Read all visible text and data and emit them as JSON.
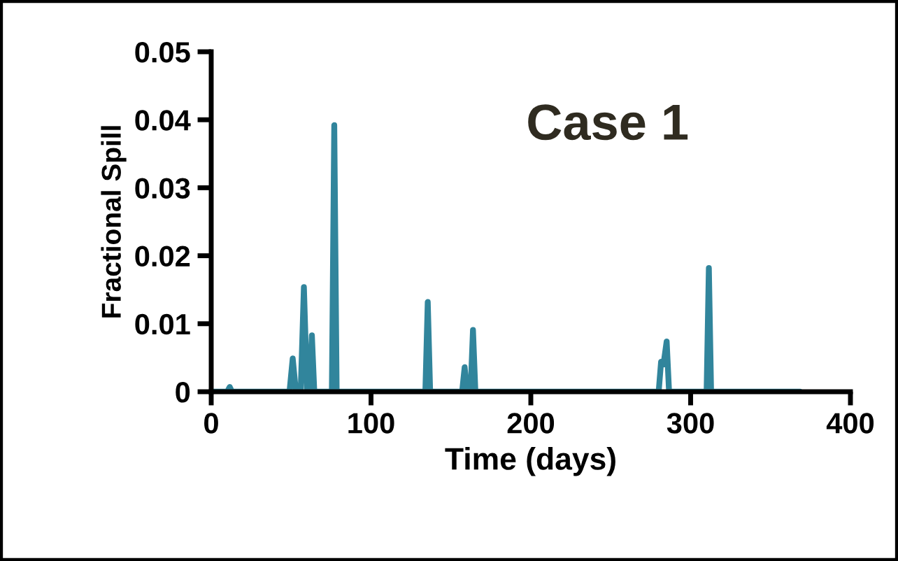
{
  "chart_data": {
    "type": "line",
    "xlabel": "Time (days)",
    "ylabel": "Fractional Spill",
    "annotations": [
      "Case 1"
    ],
    "series": [
      {
        "color": "#31859c",
        "x": [
          0,
          10,
          11.6,
          13,
          49,
          51,
          53,
          56,
          58,
          60,
          61.5,
          63,
          64.5,
          75.5,
          77,
          78.5,
          134,
          135.5,
          137,
          157,
          158.6,
          160,
          162.3,
          163.8,
          165.3,
          280,
          281.5,
          283,
          285,
          286.5,
          310,
          311.4,
          312.8,
          368.5
        ],
        "values": [
          0,
          0,
          0.0007,
          0,
          0,
          0.0049,
          0,
          0,
          0.0154,
          0,
          0,
          0.0083,
          0,
          0,
          0.0392,
          0,
          0,
          0.0132,
          0,
          0,
          0.0036,
          0,
          0,
          0.0091,
          0,
          0,
          0.0044,
          0.004,
          0.0074,
          0,
          0,
          0.0182,
          0,
          0
        ]
      }
    ],
    "xlim": [
      0,
      400
    ],
    "xticks": [
      0,
      100,
      200,
      300,
      400
    ],
    "ylim": [
      0,
      0.05
    ],
    "yticks": [
      {
        "value": 0,
        "label": "0"
      },
      0.01,
      0.02,
      0.03,
      0.04,
      0.05
    ],
    "grid": false,
    "legend": false,
    "marker": "none",
    "line_style": "solid"
  }
}
